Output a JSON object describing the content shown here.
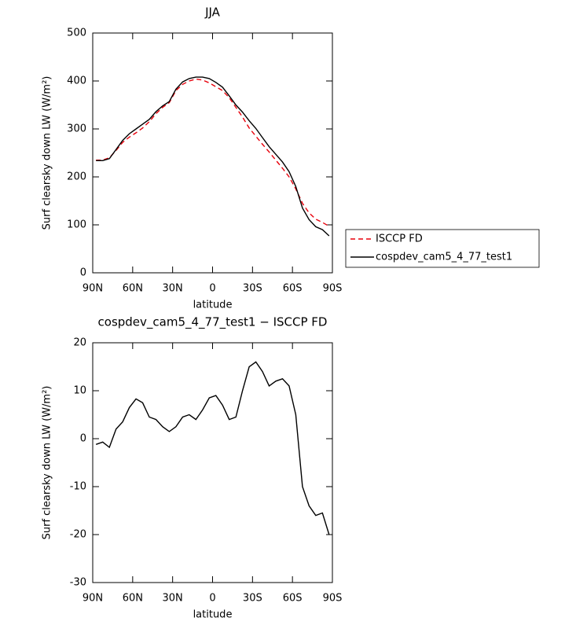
{
  "chart_data": [
    {
      "type": "line",
      "title": "JJA",
      "xlabel": "latitude",
      "ylabel": "Surf clearsky down LW (W/m²)",
      "x": [
        87.5,
        82.5,
        77.5,
        72.5,
        67.5,
        62.5,
        57.5,
        52.5,
        47.5,
        42.5,
        37.5,
        32.5,
        27.5,
        22.5,
        17.5,
        12.5,
        7.5,
        2.5,
        -2.5,
        -7.5,
        -12.5,
        -17.5,
        -22.5,
        -27.5,
        -32.5,
        -37.5,
        -42.5,
        -47.5,
        -52.5,
        -57.5,
        -62.5,
        -67.5,
        -72.5,
        -77.5,
        -82.5,
        -87.5
      ],
      "series": [
        {
          "name": "ISCCP FD",
          "color": "#e8000b",
          "linestyle": "dashed",
          "values": [
            235,
            235,
            240,
            255,
            272,
            283,
            292,
            302,
            315,
            332,
            345,
            355,
            380,
            393,
            400,
            404,
            402,
            396,
            388,
            380,
            365,
            345,
            325,
            302,
            285,
            268,
            252,
            235,
            218,
            200,
            175,
            145,
            125,
            112,
            105,
            97
          ]
        },
        {
          "name": "cospdev_cam5_4_77_test1",
          "color": "#000000",
          "linestyle": "solid",
          "values": [
            234,
            234,
            238,
            257,
            276,
            290,
            300,
            310,
            320,
            336,
            348,
            357,
            383,
            398,
            405,
            408,
            408,
            405,
            397,
            387,
            369,
            350,
            335,
            317,
            301,
            282,
            263,
            247,
            231,
            211,
            180,
            135,
            111,
            96,
            90,
            77
          ]
        }
      ],
      "xlim": [
        90,
        -90
      ],
      "xticks": [
        {
          "value": 90,
          "label": "90N"
        },
        {
          "value": 60,
          "label": "60N"
        },
        {
          "value": 30,
          "label": "30N"
        },
        0,
        {
          "value": -30,
          "label": "30S"
        },
        {
          "value": -60,
          "label": "60S"
        },
        {
          "value": -90,
          "label": "90S"
        }
      ],
      "ylim": [
        0,
        500
      ],
      "yticks": [
        0,
        100,
        200,
        300,
        400,
        500
      ],
      "legend": "right"
    },
    {
      "type": "line",
      "title": "cospdev_cam5_4_77_test1 − ISCCP FD",
      "xlabel": "latitude",
      "ylabel": "Surf clearsky down LW (W/m²)",
      "x": [
        87.5,
        82.5,
        77.5,
        72.5,
        67.5,
        62.5,
        57.5,
        52.5,
        47.5,
        42.5,
        37.5,
        32.5,
        27.5,
        22.5,
        17.5,
        12.5,
        7.5,
        2.5,
        -2.5,
        -7.5,
        -12.5,
        -17.5,
        -22.5,
        -27.5,
        -32.5,
        -37.5,
        -42.5,
        -47.5,
        -52.5,
        -57.5,
        -62.5,
        -67.5,
        -72.5,
        -77.5,
        -82.5,
        -87.5
      ],
      "series": [
        {
          "color": "#000000",
          "linestyle": "solid",
          "values": [
            -1.2,
            -0.7,
            -1.8,
            2,
            3.5,
            6.5,
            8.3,
            7.5,
            4.5,
            4,
            2.5,
            1.5,
            2.5,
            4.5,
            5,
            4,
            6,
            8.5,
            9,
            7,
            4,
            4.5,
            10,
            15,
            16,
            14,
            11,
            12,
            12.5,
            11,
            5,
            -10,
            -14,
            -16,
            -15.5,
            -20
          ]
        }
      ],
      "xlim": [
        90,
        -90
      ],
      "xticks": [
        {
          "value": 90,
          "label": "90N"
        },
        {
          "value": 60,
          "label": "60N"
        },
        {
          "value": 30,
          "label": "30N"
        },
        0,
        {
          "value": -30,
          "label": "30S"
        },
        {
          "value": -60,
          "label": "60S"
        },
        {
          "value": -90,
          "label": "90S"
        }
      ],
      "ylim": [
        -30,
        20
      ],
      "yticks": [
        -30,
        -20,
        -10,
        0,
        10,
        20
      ]
    }
  ]
}
